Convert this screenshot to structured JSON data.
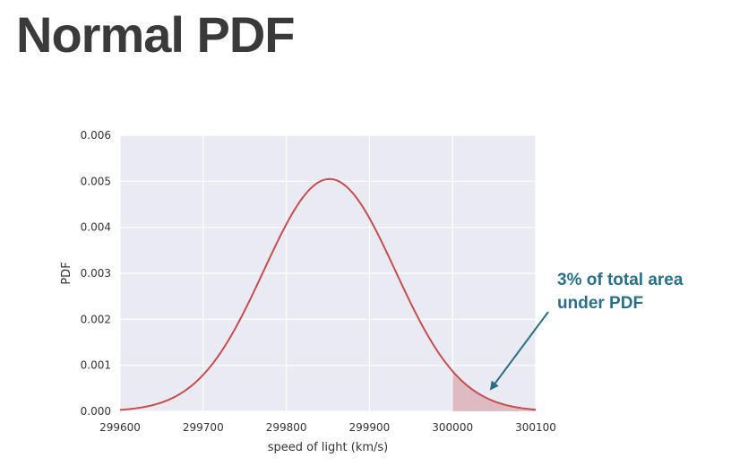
{
  "slide": {
    "title": "Normal PDF"
  },
  "annotation": {
    "lines": [
      "3% of total area",
      "under PDF"
    ],
    "color": "#2a6f86"
  },
  "chart_data": {
    "type": "line",
    "title": "",
    "xlabel": "speed of light (km/s)",
    "ylabel": "PDF",
    "xlim": [
      299600,
      300100
    ],
    "ylim": [
      0,
      0.006
    ],
    "xticks": [
      299600,
      299700,
      299800,
      299900,
      300000,
      300100
    ],
    "xtick_labels": [
      "299600",
      "299700",
      "299800",
      "299900",
      "300000",
      "300100"
    ],
    "yticks": [
      0,
      0.001,
      0.002,
      0.003,
      0.004,
      0.005,
      0.006
    ],
    "ytick_labels": [
      "0.000",
      "0.001",
      "0.002",
      "0.003",
      "0.004",
      "0.005",
      "0.006"
    ],
    "grid": true,
    "series": [
      {
        "distribution": "normal",
        "mean": 299852,
        "std": 79,
        "color": "#c44e52"
      }
    ],
    "shaded_region": {
      "x_from": 300000,
      "x_to": 300100,
      "color": "#c44e52",
      "opacity": 0.3
    },
    "background_color": "#eaeaf2",
    "grid_color": "#ffffff"
  }
}
